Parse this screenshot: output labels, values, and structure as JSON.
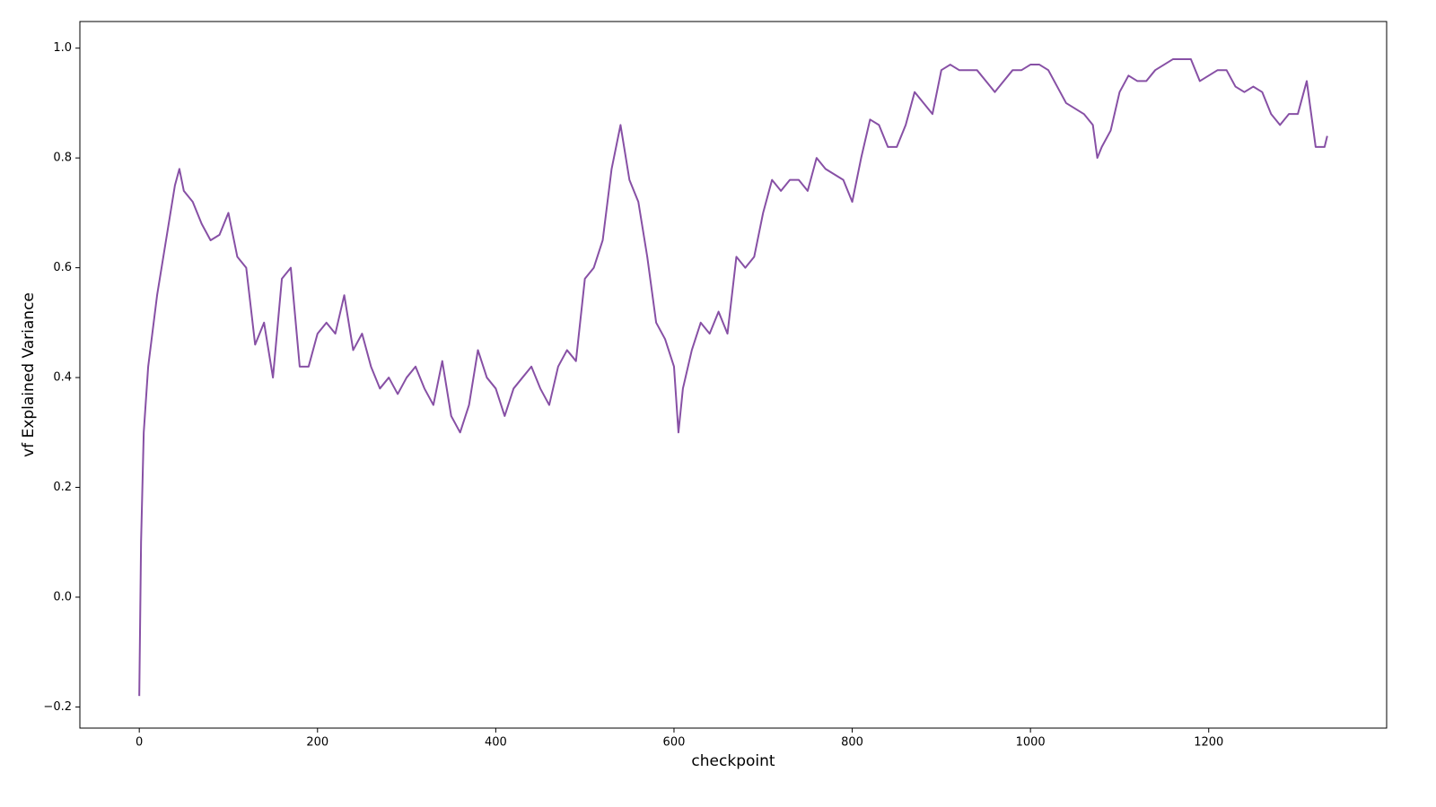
{
  "chart_data": {
    "type": "line",
    "xlabel": "checkpoint",
    "ylabel": "vf Explained Variance",
    "color": "#8750a5",
    "x": [
      0,
      2,
      5,
      10,
      20,
      30,
      40,
      45,
      50,
      60,
      70,
      80,
      90,
      100,
      110,
      120,
      130,
      140,
      150,
      160,
      170,
      180,
      190,
      200,
      210,
      220,
      230,
      240,
      250,
      260,
      270,
      280,
      290,
      300,
      310,
      320,
      330,
      340,
      350,
      360,
      370,
      380,
      390,
      400,
      410,
      420,
      430,
      440,
      450,
      460,
      470,
      480,
      490,
      500,
      510,
      520,
      530,
      540,
      550,
      560,
      570,
      580,
      590,
      600,
      605,
      610,
      620,
      630,
      640,
      650,
      660,
      670,
      680,
      690,
      700,
      710,
      720,
      730,
      740,
      750,
      760,
      770,
      780,
      790,
      800,
      810,
      820,
      830,
      840,
      850,
      860,
      870,
      880,
      890,
      900,
      910,
      920,
      930,
      940,
      950,
      960,
      970,
      980,
      990,
      1000,
      1010,
      1020,
      1030,
      1040,
      1050,
      1060,
      1070,
      1075,
      1080,
      1090,
      1100,
      1110,
      1120,
      1130,
      1140,
      1150,
      1160,
      1170,
      1180,
      1190,
      1200,
      1210,
      1220,
      1230,
      1240,
      1250,
      1260,
      1270,
      1280,
      1290,
      1300,
      1310,
      1320,
      1330,
      1333
    ],
    "values": [
      -0.18,
      0.1,
      0.3,
      0.42,
      0.55,
      0.65,
      0.75,
      0.78,
      0.74,
      0.72,
      0.68,
      0.65,
      0.66,
      0.7,
      0.62,
      0.6,
      0.46,
      0.5,
      0.4,
      0.58,
      0.6,
      0.42,
      0.42,
      0.48,
      0.5,
      0.48,
      0.55,
      0.45,
      0.48,
      0.42,
      0.38,
      0.4,
      0.37,
      0.4,
      0.42,
      0.38,
      0.35,
      0.43,
      0.33,
      0.3,
      0.35,
      0.45,
      0.4,
      0.38,
      0.33,
      0.38,
      0.4,
      0.42,
      0.38,
      0.35,
      0.42,
      0.45,
      0.43,
      0.58,
      0.6,
      0.65,
      0.78,
      0.86,
      0.76,
      0.72,
      0.62,
      0.5,
      0.47,
      0.42,
      0.3,
      0.38,
      0.45,
      0.5,
      0.48,
      0.52,
      0.48,
      0.62,
      0.6,
      0.62,
      0.7,
      0.76,
      0.74,
      0.76,
      0.76,
      0.74,
      0.8,
      0.78,
      0.77,
      0.76,
      0.72,
      0.8,
      0.87,
      0.86,
      0.82,
      0.82,
      0.86,
      0.92,
      0.9,
      0.88,
      0.96,
      0.97,
      0.96,
      0.96,
      0.96,
      0.94,
      0.92,
      0.94,
      0.96,
      0.96,
      0.97,
      0.97,
      0.96,
      0.93,
      0.9,
      0.89,
      0.88,
      0.86,
      0.8,
      0.82,
      0.85,
      0.92,
      0.95,
      0.94,
      0.94,
      0.96,
      0.97,
      0.98,
      0.98,
      0.98,
      0.94,
      0.95,
      0.96,
      0.96,
      0.93,
      0.92,
      0.93,
      0.92,
      0.88,
      0.86,
      0.88,
      0.88,
      0.94,
      0.82,
      0.82,
      0.84
    ],
    "xlim": [
      -66.65,
      1399.65
    ],
    "ylim": [
      -0.2385,
      1.0485
    ],
    "xticks": [
      0,
      200,
      400,
      600,
      800,
      1000,
      1200
    ],
    "yticks": [
      {
        "value": -0.2,
        "label": "−0.2"
      },
      {
        "value": 0,
        "label": "0.0"
      },
      {
        "value": 0.2,
        "label": "0.2"
      },
      {
        "value": 0.4,
        "label": "0.4"
      },
      {
        "value": 0.6,
        "label": "0.6"
      },
      {
        "value": 0.8,
        "label": "0.8"
      },
      {
        "value": 1,
        "label": "1.0"
      }
    ]
  }
}
